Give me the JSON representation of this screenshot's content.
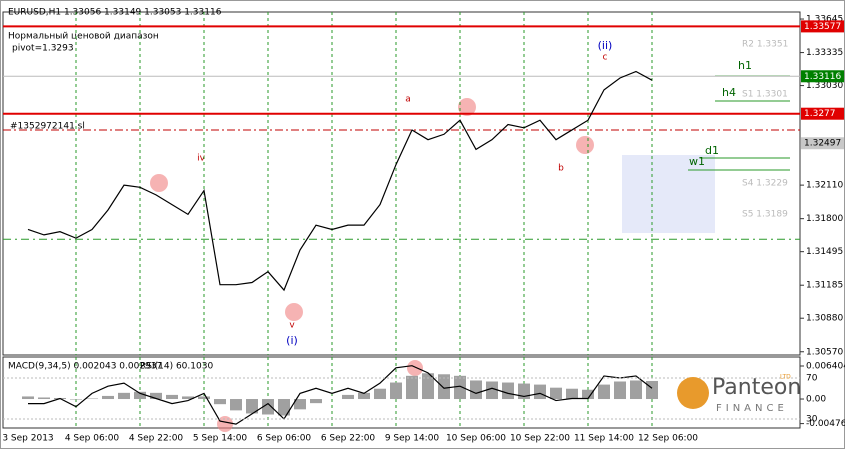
{
  "chart_data": [
    {
      "type": "line",
      "title": "EURUSD,H1  1.33056 1.33149 1.33053 1.33116",
      "subtitle": "Нормальный ценовой диапазон",
      "pivot_label": "pivot=1.3293",
      "order_label": "#1352972141 sl",
      "color": "#000000",
      "values": [
        1.317,
        1.3165,
        1.3168,
        1.3162,
        1.317,
        1.3188,
        1.3211,
        1.3209,
        1.3202,
        1.3193,
        1.3184,
        1.3206,
        1.3119,
        1.3119,
        1.3121,
        1.3131,
        1.3114,
        1.3151,
        1.3174,
        1.317,
        1.3174,
        1.3174,
        1.3193,
        1.323,
        1.3262,
        1.3253,
        1.3258,
        1.3271,
        1.3244,
        1.3253,
        1.3267,
        1.3264,
        1.3271,
        1.3253,
        1.3262,
        1.3271,
        1.3299,
        1.331,
        1.3316,
        1.3308,
        null
      ],
      "ylim": [
        1.3054,
        1.3371
      ],
      "yticks": [
        1.33645,
        1.33335,
        {
          "value": 1.3303,
          "label": "1.33030"
        },
        {
          "value": 1.3211,
          "label": "1.32110"
        },
        {
          "value": 1.318,
          "label": "1.31800"
        },
        1.31495,
        1.31185,
        {
          "value": 1.3088,
          "label": "1.30880"
        },
        {
          "value": 1.3057,
          "label": "1.30570"
        }
      ],
      "levels": [
        {
          "value": 1.33577,
          "color": "#e00000"
        },
        {
          "value": 1.33116,
          "color": "#008000"
        },
        {
          "value": 1.3277,
          "color": "#e00000"
        },
        {
          "value": 1.32497,
          "color": "#c8c8c8"
        }
      ],
      "support_level": 1.3161,
      "annotations": [
        "a",
        "b",
        "c",
        "(ii)",
        "iv",
        "v",
        "(i)",
        "h1",
        "h4",
        "d1",
        "w1"
      ],
      "pivot_texts": [
        "R2 1.3351",
        "S1 1.3301",
        "S4 1.3229",
        "S5 1.3189"
      ],
      "grid": true
    },
    {
      "type": "bar",
      "categories": [
        "3 Sep 2013",
        null,
        null,
        null,
        "4 Sep 06:00",
        null,
        null,
        null,
        "4 Sep 22:00",
        null,
        null,
        null,
        "5 Sep 14:00",
        null,
        null,
        null,
        "6 Sep 06:00",
        null,
        null,
        null,
        "6 Sep 22:00",
        null,
        null,
        null,
        "9 Sep 14:00",
        null,
        null,
        null,
        "10 Sep 06:00",
        null,
        null,
        null,
        "10 Sep 22:00",
        null,
        null,
        null,
        "11 Sep 14:00",
        null,
        null,
        null,
        "12 Sep 06:00"
      ],
      "series": [
        {
          "name": "MACD(9,34,5) 0.002043 0.002937",
          "color": "#a0a0a0",
          "values": [
            0.0005,
            0.0003,
            0.0002,
            -0.0001,
            0.0001,
            0.0006,
            0.0012,
            0.0014,
            0.0012,
            0.0008,
            0.0005,
            0.0005,
            -0.001,
            -0.0022,
            -0.0028,
            -0.003,
            -0.0032,
            -0.002,
            -0.0008,
            0,
            0.0008,
            0.0012,
            0.002,
            0.0032,
            0.0045,
            0.005,
            0.0048,
            0.0045,
            0.0036,
            0.0034,
            0.0032,
            0.003,
            0.0028,
            0.0022,
            0.002,
            0.0018,
            0.0028,
            0.0034,
            0.0036,
            0.0035,
            null
          ]
        },
        {
          "name": "RSI(14) 60.1030",
          "color": "#000000",
          "axis": "y2",
          "values": [
            45,
            45,
            50,
            42,
            55,
            62,
            65,
            55,
            50,
            45,
            48,
            55,
            28,
            25,
            35,
            45,
            30,
            55,
            60,
            55,
            60,
            55,
            65,
            80,
            82,
            75,
            60,
            62,
            55,
            60,
            55,
            52,
            55,
            48,
            50,
            50,
            72,
            70,
            72,
            60,
            null
          ]
        }
      ],
      "ylim": [
        -0.00562,
        0.00815
      ],
      "yticks": [
        0.006404,
        {
          "value": 0,
          "label": "0.00"
        },
        -0.004766
      ],
      "y2lim": [
        21.2,
        90.5
      ],
      "y2ticks": [
        70,
        30
      ]
    },
    {
      "logo": {
        "name": "Panteon",
        "tag": "LTD",
        "sub": "FINANCE"
      }
    }
  ]
}
